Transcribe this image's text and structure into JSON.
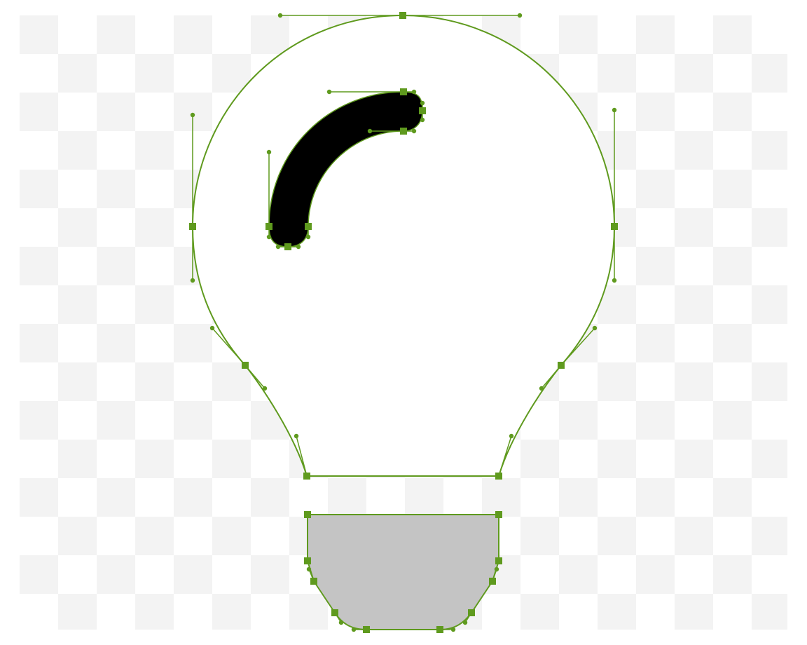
{
  "colors": {
    "page_background": "#ffffff",
    "checker_light": "#f3f3f3",
    "bulb_fill": "#ffffff",
    "highlight_fill": "#000000",
    "base_fill": "#c4c4c4",
    "path_stroke": "#5f9a1e",
    "anchor_fill": "#5f9a1e"
  },
  "icons": {
    "anchor_point": "square-anchor-icon",
    "control_handle": "round-handle-icon"
  }
}
